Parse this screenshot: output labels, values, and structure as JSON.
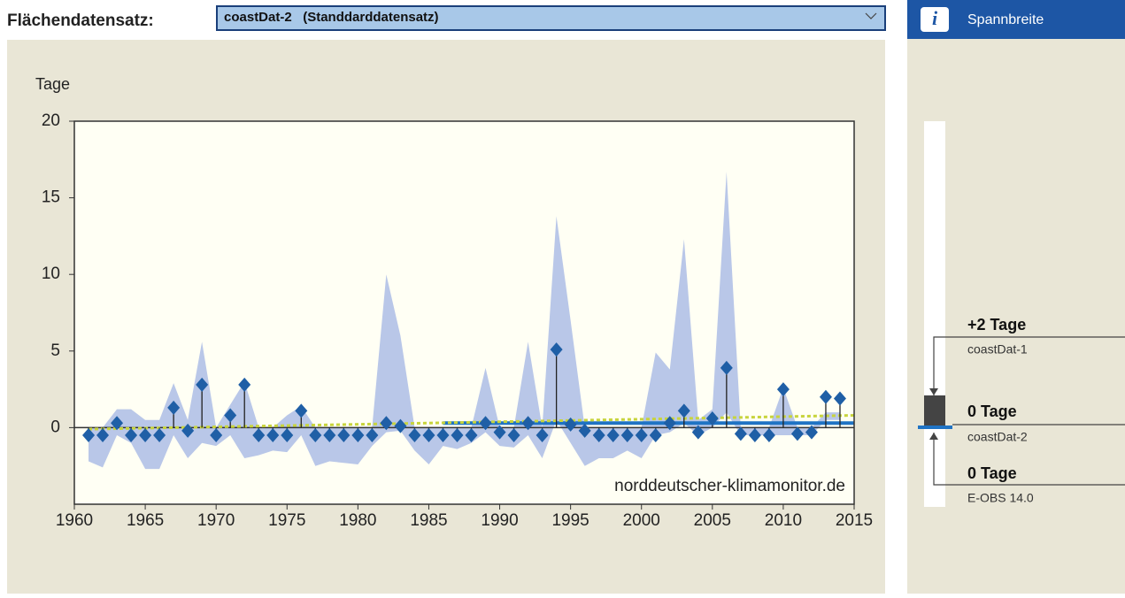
{
  "header": {
    "label": "Flächendatensatz:",
    "dropdown": "coastDat-2   (Standdarddatensatz)"
  },
  "chart_data": {
    "type": "stem",
    "y_label": "Tage",
    "watermark": "norddeutscher-klimamonitor.de",
    "xlim": [
      1960,
      2015
    ],
    "xticks": [
      1960,
      1965,
      1970,
      1975,
      1980,
      1985,
      1990,
      1995,
      2000,
      2005,
      2010,
      2015
    ],
    "ylim": [
      -5,
      20
    ],
    "yticks": [
      0,
      5,
      10,
      15,
      20
    ],
    "color": "#1f5fa6",
    "band_color": "#b9c7e8",
    "x": [
      1961,
      1962,
      1963,
      1964,
      1965,
      1966,
      1967,
      1968,
      1969,
      1970,
      1971,
      1972,
      1973,
      1974,
      1975,
      1976,
      1977,
      1978,
      1979,
      1980,
      1981,
      1982,
      1983,
      1984,
      1985,
      1986,
      1987,
      1988,
      1989,
      1990,
      1991,
      1992,
      1993,
      1994,
      1995,
      1996,
      1997,
      1998,
      1999,
      2000,
      2001,
      2002,
      2003,
      2004,
      2005,
      2006,
      2007,
      2008,
      2009,
      2010,
      2011,
      2012,
      2013,
      2014
    ],
    "values": [
      -0.5,
      -0.5,
      0.3,
      -0.5,
      -0.5,
      -0.5,
      1.3,
      -0.2,
      2.8,
      -0.5,
      0.8,
      2.8,
      -0.5,
      -0.5,
      -0.5,
      1.1,
      -0.5,
      -0.5,
      -0.5,
      -0.5,
      -0.5,
      0.3,
      0.1,
      -0.5,
      -0.5,
      -0.5,
      -0.5,
      -0.5,
      0.3,
      -0.3,
      -0.5,
      0.3,
      -0.5,
      5.1,
      0.2,
      -0.2,
      -0.5,
      -0.5,
      -0.5,
      -0.5,
      -0.5,
      0.3,
      1.1,
      -0.3,
      0.6,
      3.9,
      -0.4,
      -0.5,
      -0.5,
      2.5,
      -0.4,
      -0.3,
      2.0,
      1.9
    ],
    "band_upper": [
      0,
      0,
      1.2,
      1.2,
      0.5,
      0.5,
      2.9,
      0.5,
      5.6,
      0,
      1.5,
      3,
      0,
      0,
      0.8,
      1.4,
      0,
      0,
      0,
      0,
      0,
      10,
      6,
      0,
      0,
      0,
      0,
      0,
      3.9,
      0,
      0,
      5.6,
      0,
      13.8,
      7,
      0,
      0,
      0,
      0,
      0,
      4.9,
      3.8,
      12.3,
      0.5,
      1.2,
      16.7,
      0,
      0,
      0,
      2.6,
      0,
      0,
      1,
      1
    ],
    "band_lower": [
      -2.2,
      -2.6,
      -0.5,
      -1,
      -2.7,
      -2.7,
      -0.5,
      -2,
      -1,
      -1.2,
      -0.5,
      -2,
      -1.8,
      -1.5,
      -1.6,
      -0.5,
      -2.5,
      -2.2,
      -2.3,
      -2.4,
      -1.2,
      -0.3,
      -0.2,
      -1.5,
      -2.4,
      -1.2,
      -1.4,
      -1,
      -0.3,
      -1.2,
      -1.3,
      -0.5,
      -2,
      0.5,
      -1,
      -2.5,
      -2,
      -2,
      -1.5,
      -2,
      -0.5,
      -0.3,
      0.3,
      -0.5,
      0,
      1,
      -0.5,
      -0.5,
      -0.5,
      -0.5,
      -0.5,
      -0.5,
      0.5,
      0.5
    ],
    "trend_lines": [
      {
        "color": "#1f73c4",
        "x": [
          1986,
          2015
        ],
        "values": [
          0.3,
          0.3
        ],
        "dashed": false
      },
      {
        "color": "#c8d43c",
        "x": [
          1961,
          2015
        ],
        "values": [
          -0.1,
          0.8
        ],
        "dashed": true
      }
    ]
  },
  "range_panel": {
    "title": "Spannbreite",
    "entries": [
      {
        "label": "+2 Tage",
        "dataset": "coastDat-1"
      },
      {
        "label": "0 Tage",
        "dataset": "coastDat-2"
      },
      {
        "label": "0 Tage",
        "dataset": "E-OBS 14.0"
      }
    ]
  }
}
